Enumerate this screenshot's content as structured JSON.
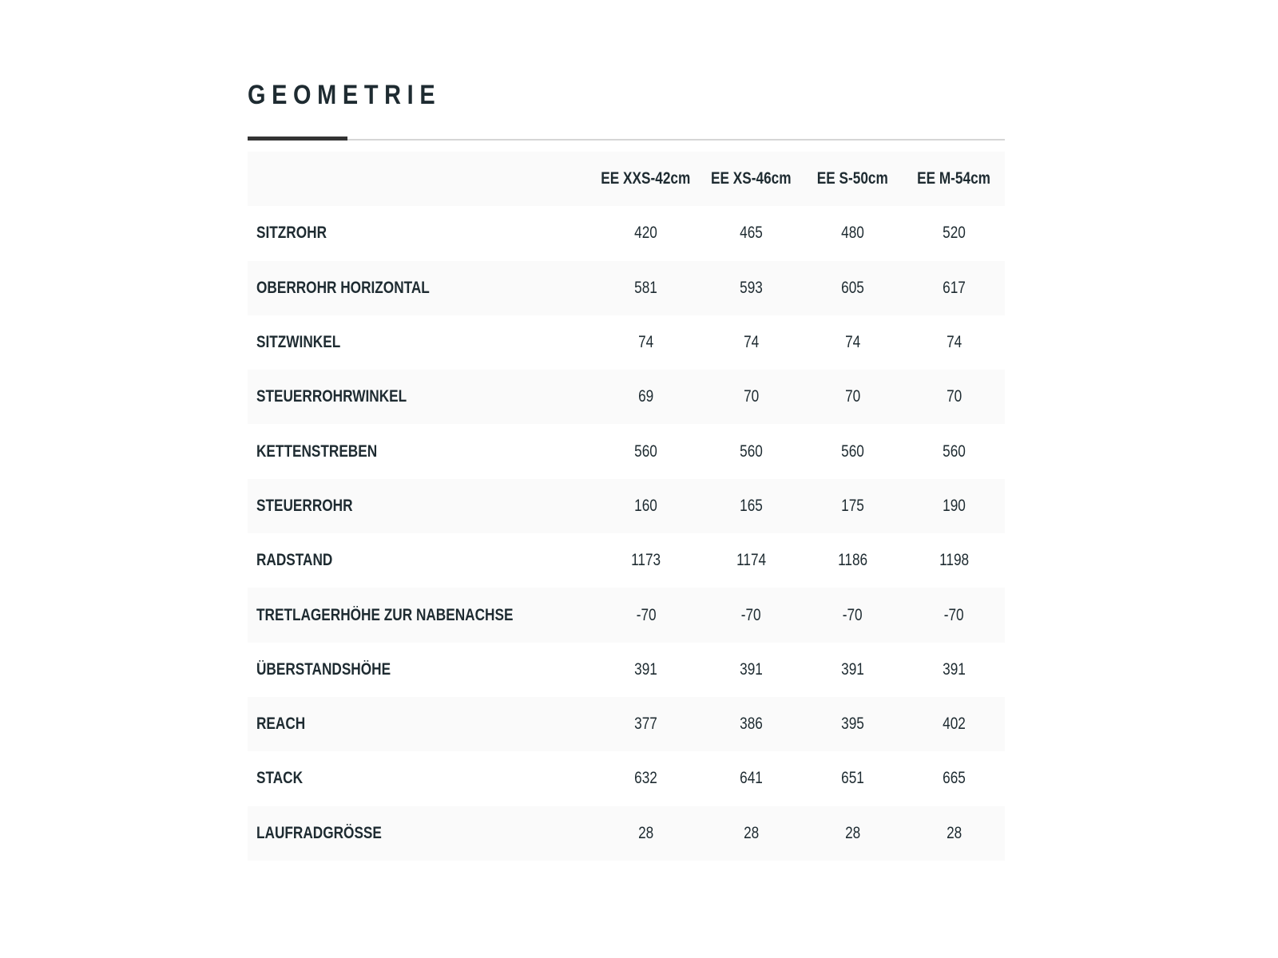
{
  "title": "GEOMETRIE",
  "columns": [
    "EE XXS-42cm",
    "EE XS-46cm",
    "EE S-50cm",
    "EE M-54cm"
  ],
  "rows": [
    {
      "label": "SITZROHR",
      "values": [
        "420",
        "465",
        "480",
        "520"
      ]
    },
    {
      "label": "OBERROHR HORIZONTAL",
      "values": [
        "581",
        "593",
        "605",
        "617"
      ]
    },
    {
      "label": "SITZWINKEL",
      "values": [
        "74",
        "74",
        "74",
        "74"
      ]
    },
    {
      "label": "STEUERROHRWINKEL",
      "values": [
        "69",
        "70",
        "70",
        "70"
      ]
    },
    {
      "label": "KETTENSTREBEN",
      "values": [
        "560",
        "560",
        "560",
        "560"
      ]
    },
    {
      "label": "STEUERROHR",
      "values": [
        "160",
        "165",
        "175",
        "190"
      ]
    },
    {
      "label": "RADSTAND",
      "values": [
        "1173",
        "1174",
        "1186",
        "1198"
      ]
    },
    {
      "label": "TRETLAGERHÖHE ZUR NABENACHSE",
      "values": [
        "-70",
        "-70",
        "-70",
        "-70"
      ]
    },
    {
      "label": "ÜBERSTANDSHÖHE",
      "values": [
        "391",
        "391",
        "391",
        "391"
      ]
    },
    {
      "label": "REACH",
      "values": [
        "377",
        "386",
        "395",
        "402"
      ]
    },
    {
      "label": "STACK",
      "values": [
        "632",
        "641",
        "651",
        "665"
      ]
    },
    {
      "label": "LAUFRADGRÖSSE",
      "values": [
        "28",
        "28",
        "28",
        "28"
      ]
    }
  ]
}
